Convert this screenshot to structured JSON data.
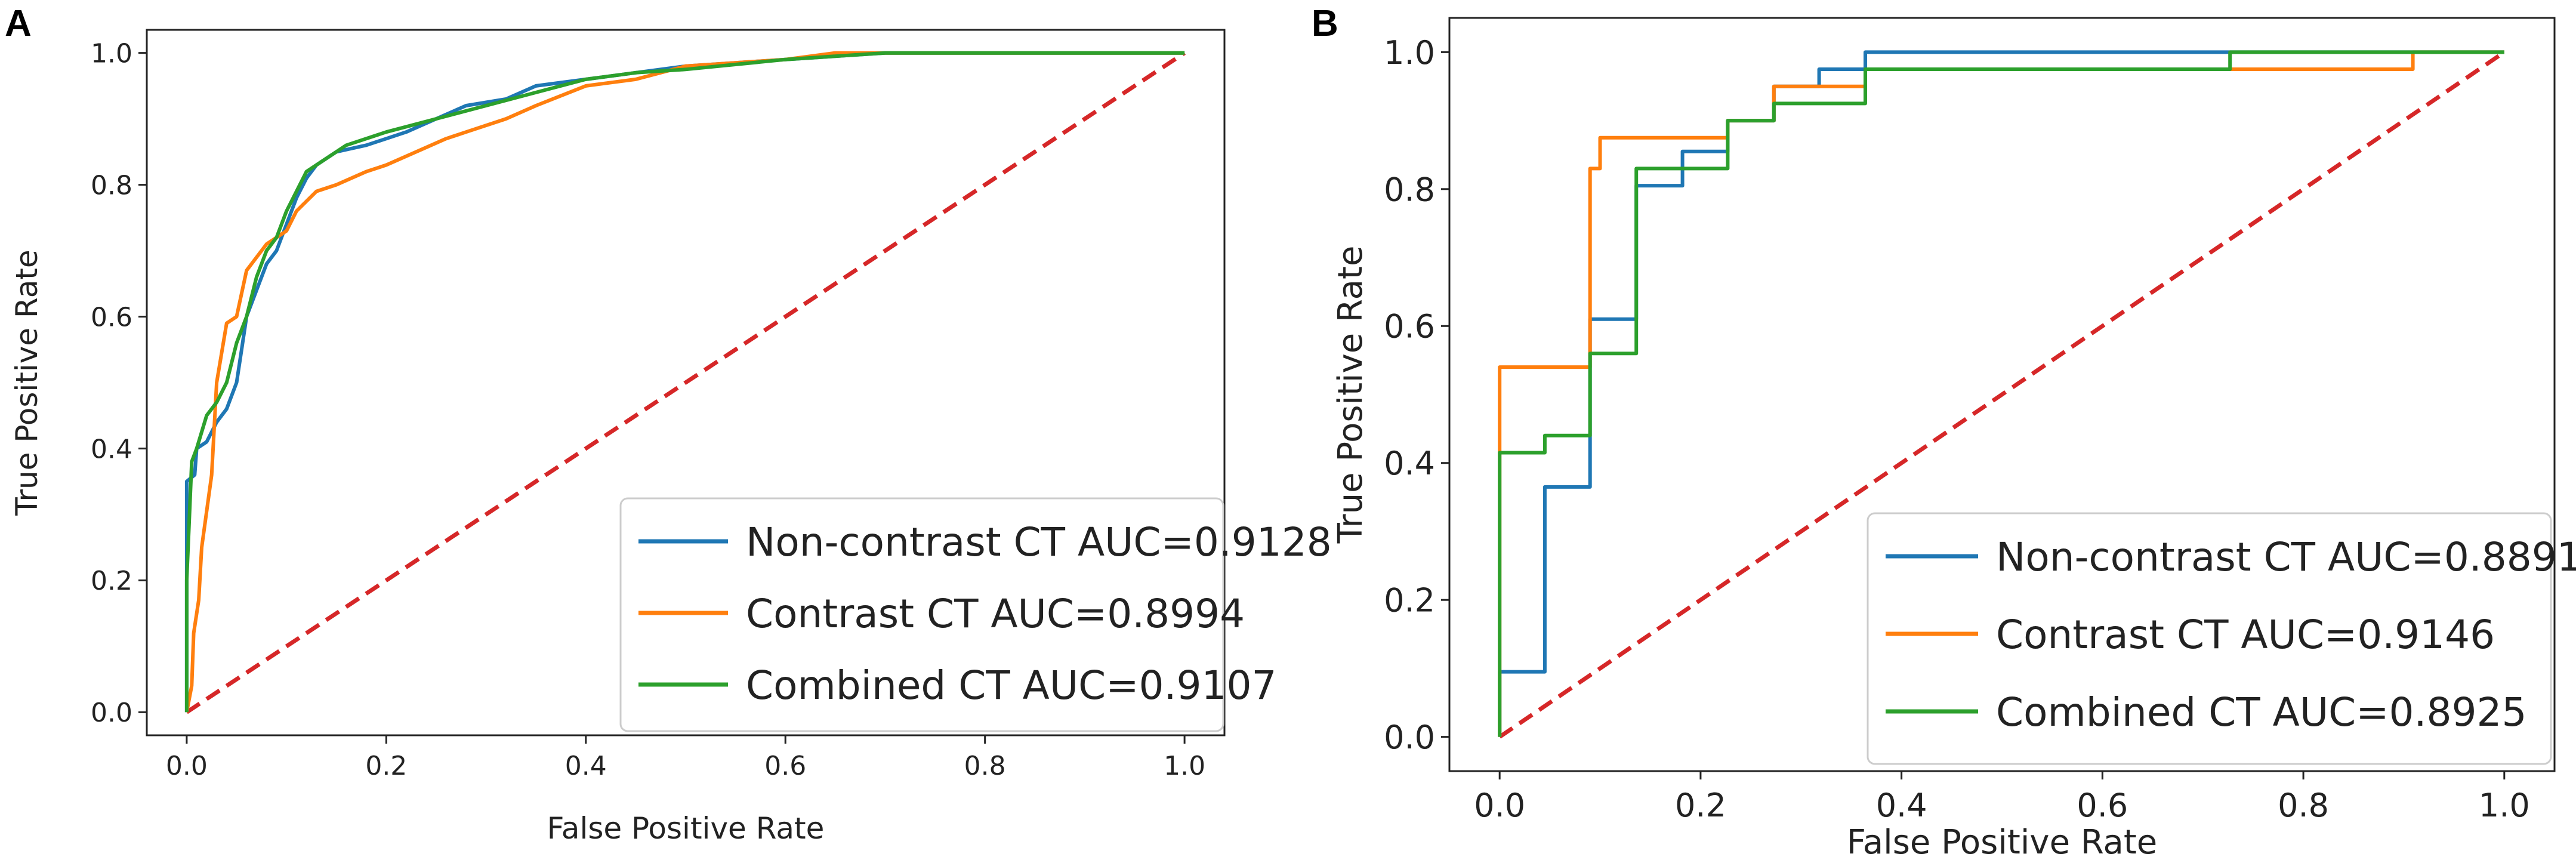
{
  "chart_data": [
    {
      "panel": "A",
      "type": "line",
      "xlabel": "False Positive Rate",
      "ylabel": "True Positive Rate",
      "xlim": [
        -0.04,
        1.04
      ],
      "ylim": [
        -0.035,
        1.035
      ],
      "xticks": [
        0.0,
        0.2,
        0.4,
        0.6,
        0.8,
        1.0
      ],
      "yticks": [
        0.0,
        0.2,
        0.4,
        0.6,
        0.8,
        1.0
      ],
      "tick_labels": [
        "0.0",
        "0.2",
        "0.4",
        "0.6",
        "0.8",
        "1.0"
      ],
      "legend_position": "lower-right",
      "series": [
        {
          "name": "Non-contrast CT AUC=0.9128",
          "color": "#1f77b4",
          "points": [
            [
              0,
              0
            ],
            [
              0,
              0.35
            ],
            [
              0.008,
              0.36
            ],
            [
              0.01,
              0.4
            ],
            [
              0.02,
              0.41
            ],
            [
              0.03,
              0.44
            ],
            [
              0.04,
              0.46
            ],
            [
              0.05,
              0.5
            ],
            [
              0.055,
              0.55
            ],
            [
              0.06,
              0.6
            ],
            [
              0.07,
              0.64
            ],
            [
              0.08,
              0.68
            ],
            [
              0.09,
              0.7
            ],
            [
              0.1,
              0.74
            ],
            [
              0.11,
              0.78
            ],
            [
              0.12,
              0.81
            ],
            [
              0.13,
              0.83
            ],
            [
              0.15,
              0.85
            ],
            [
              0.18,
              0.86
            ],
            [
              0.2,
              0.87
            ],
            [
              0.22,
              0.88
            ],
            [
              0.25,
              0.9
            ],
            [
              0.28,
              0.92
            ],
            [
              0.32,
              0.93
            ],
            [
              0.35,
              0.95
            ],
            [
              0.4,
              0.96
            ],
            [
              0.45,
              0.97
            ],
            [
              0.5,
              0.98
            ],
            [
              0.55,
              0.985
            ],
            [
              0.6,
              0.99
            ],
            [
              0.7,
              1.0
            ],
            [
              1.0,
              1.0
            ]
          ]
        },
        {
          "name": "Contrast CT AUC=0.8994",
          "color": "#ff7f0e",
          "points": [
            [
              0,
              0
            ],
            [
              0.005,
              0.04
            ],
            [
              0.007,
              0.12
            ],
            [
              0.012,
              0.17
            ],
            [
              0.015,
              0.25
            ],
            [
              0.025,
              0.36
            ],
            [
              0.03,
              0.5
            ],
            [
              0.04,
              0.59
            ],
            [
              0.05,
              0.6
            ],
            [
              0.06,
              0.67
            ],
            [
              0.08,
              0.71
            ],
            [
              0.1,
              0.73
            ],
            [
              0.11,
              0.76
            ],
            [
              0.13,
              0.79
            ],
            [
              0.15,
              0.8
            ],
            [
              0.18,
              0.82
            ],
            [
              0.2,
              0.83
            ],
            [
              0.23,
              0.85
            ],
            [
              0.26,
              0.87
            ],
            [
              0.28,
              0.88
            ],
            [
              0.32,
              0.9
            ],
            [
              0.35,
              0.92
            ],
            [
              0.4,
              0.95
            ],
            [
              0.45,
              0.96
            ],
            [
              0.5,
              0.98
            ],
            [
              0.55,
              0.985
            ],
            [
              0.6,
              0.99
            ],
            [
              0.65,
              1.0
            ],
            [
              1.0,
              1.0
            ]
          ]
        },
        {
          "name": "Combined CT AUC=0.9107",
          "color": "#2ca02c",
          "points": [
            [
              0,
              0
            ],
            [
              0,
              0.2
            ],
            [
              0.005,
              0.38
            ],
            [
              0.01,
              0.4
            ],
            [
              0.02,
              0.45
            ],
            [
              0.03,
              0.47
            ],
            [
              0.04,
              0.5
            ],
            [
              0.05,
              0.56
            ],
            [
              0.06,
              0.6
            ],
            [
              0.07,
              0.66
            ],
            [
              0.08,
              0.7
            ],
            [
              0.09,
              0.72
            ],
            [
              0.1,
              0.76
            ],
            [
              0.12,
              0.82
            ],
            [
              0.14,
              0.84
            ],
            [
              0.16,
              0.86
            ],
            [
              0.2,
              0.88
            ],
            [
              0.25,
              0.9
            ],
            [
              0.3,
              0.92
            ],
            [
              0.35,
              0.94
            ],
            [
              0.4,
              0.96
            ],
            [
              0.45,
              0.97
            ],
            [
              0.5,
              0.975
            ],
            [
              0.6,
              0.99
            ],
            [
              0.7,
              1.0
            ],
            [
              1.0,
              1.0
            ]
          ]
        },
        {
          "name": "chance",
          "color": "#d62728",
          "dashed": true,
          "in_legend": false,
          "points": [
            [
              0,
              0
            ],
            [
              1,
              1
            ]
          ]
        }
      ]
    },
    {
      "panel": "B",
      "type": "line",
      "xlabel": "False Positive Rate",
      "ylabel": "True Positive Rate",
      "xlim": [
        -0.05,
        1.05
      ],
      "ylim": [
        -0.05,
        1.05
      ],
      "xticks": [
        0.0,
        0.2,
        0.4,
        0.6,
        0.8,
        1.0
      ],
      "yticks": [
        0.0,
        0.2,
        0.4,
        0.6,
        0.8,
        1.0
      ],
      "tick_labels": [
        "0.0",
        "0.2",
        "0.4",
        "0.6",
        "0.8",
        "1.0"
      ],
      "legend_position": "lower-right",
      "series": [
        {
          "name": "Non-contrast CT AUC=0.8891",
          "color": "#1f77b4",
          "points": [
            [
              0,
              0
            ],
            [
              0,
              0.095
            ],
            [
              0.045,
              0.095
            ],
            [
              0.045,
              0.365
            ],
            [
              0.09,
              0.365
            ],
            [
              0.09,
              0.61
            ],
            [
              0.136,
              0.61
            ],
            [
              0.136,
              0.805
            ],
            [
              0.182,
              0.805
            ],
            [
              0.182,
              0.855
            ],
            [
              0.227,
              0.855
            ],
            [
              0.227,
              0.9
            ],
            [
              0.273,
              0.9
            ],
            [
              0.273,
              0.95
            ],
            [
              0.318,
              0.95
            ],
            [
              0.318,
              0.975
            ],
            [
              0.364,
              0.975
            ],
            [
              0.364,
              1.0
            ],
            [
              1.0,
              1.0
            ]
          ]
        },
        {
          "name": "Contrast CT AUC=0.9146",
          "color": "#ff7f0e",
          "points": [
            [
              0,
              0
            ],
            [
              0,
              0.54
            ],
            [
              0.09,
              0.54
            ],
            [
              0.09,
              0.83
            ],
            [
              0.1,
              0.83
            ],
            [
              0.1,
              0.875
            ],
            [
              0.227,
              0.875
            ],
            [
              0.227,
              0.9
            ],
            [
              0.273,
              0.9
            ],
            [
              0.273,
              0.95
            ],
            [
              0.364,
              0.95
            ],
            [
              0.364,
              0.975
            ],
            [
              0.727,
              0.975
            ],
            [
              0.727,
              0.975
            ],
            [
              0.909,
              0.975
            ],
            [
              0.909,
              1.0
            ],
            [
              1.0,
              1.0
            ]
          ]
        },
        {
          "name": "Combined CT AUC=0.8925",
          "color": "#2ca02c",
          "points": [
            [
              0,
              0
            ],
            [
              0,
              0.415
            ],
            [
              0.045,
              0.415
            ],
            [
              0.045,
              0.44
            ],
            [
              0.09,
              0.44
            ],
            [
              0.09,
              0.56
            ],
            [
              0.136,
              0.56
            ],
            [
              0.136,
              0.83
            ],
            [
              0.227,
              0.83
            ],
            [
              0.227,
              0.9
            ],
            [
              0.273,
              0.9
            ],
            [
              0.273,
              0.925
            ],
            [
              0.364,
              0.925
            ],
            [
              0.364,
              0.975
            ],
            [
              0.727,
              0.975
            ],
            [
              0.727,
              1.0
            ],
            [
              1.0,
              1.0
            ]
          ]
        },
        {
          "name": "chance",
          "color": "#d62728",
          "dashed": true,
          "in_legend": false,
          "points": [
            [
              0,
              0
            ],
            [
              1,
              1
            ]
          ]
        }
      ]
    }
  ]
}
